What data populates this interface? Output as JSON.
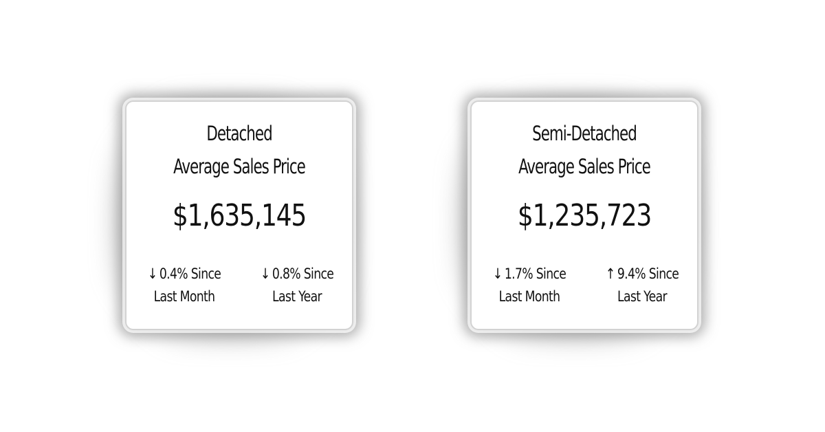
{
  "cards": [
    {
      "title_line1": "Detached",
      "title_line2": "Average Sales Price",
      "price": "$1,635,145",
      "month": {
        "arrow": "↓",
        "change": "0.4% Since",
        "period": "Last Month"
      },
      "year": {
        "arrow": "↓",
        "change": "0.8% Since",
        "period": "Last Year"
      }
    },
    {
      "title_line1": "Semi-Detached",
      "title_line2": "Average Sales Price",
      "price": "$1,235,723",
      "month": {
        "arrow": "↓",
        "change": "1.7% Since",
        "period": "Last Month"
      },
      "year": {
        "arrow": "↑",
        "change": "9.4% Since",
        "period": "Last Year"
      }
    }
  ]
}
